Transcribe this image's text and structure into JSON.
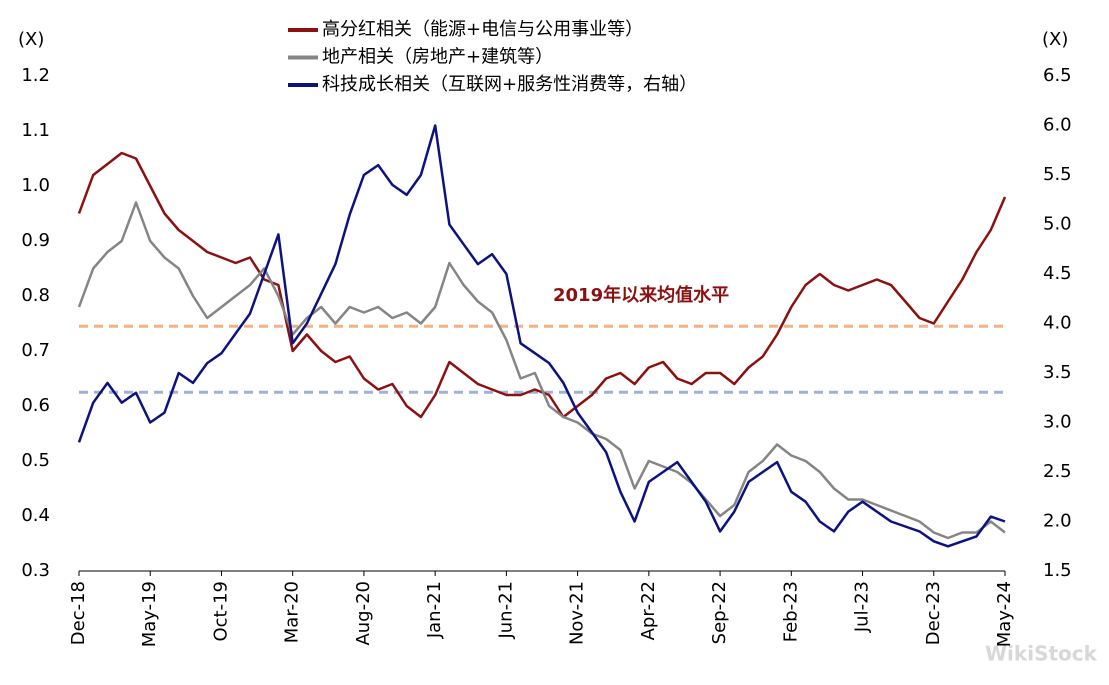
{
  "chart_data": {
    "type": "line",
    "y_label": "(X)",
    "y2_label": "(X)",
    "annotation": "2019年以来均值水平",
    "watermark": "WikiStock",
    "categories": [
      "Dec-18",
      null,
      null,
      null,
      null,
      "May-19",
      null,
      null,
      null,
      null,
      "Oct-19",
      null,
      null,
      null,
      null,
      "Mar-20",
      null,
      null,
      null,
      null,
      "Aug-20",
      null,
      null,
      null,
      null,
      "Jan-21",
      null,
      null,
      null,
      null,
      "Jun-21",
      null,
      null,
      null,
      null,
      "Nov-21",
      null,
      null,
      null,
      null,
      "Apr-22",
      null,
      null,
      null,
      null,
      "Sep-22",
      null,
      null,
      null,
      null,
      "Feb-23",
      null,
      null,
      null,
      null,
      "Jul-23",
      null,
      null,
      null,
      null,
      "Dec-23",
      null,
      null,
      null,
      null,
      "May-24"
    ],
    "ylim": [
      0.3,
      1.2
    ],
    "yticks": [
      0.3,
      0.4,
      0.5,
      0.6,
      0.7,
      0.8,
      0.9,
      {
        "value": 1,
        "label": "1.0"
      },
      1.1,
      1.2
    ],
    "y2lim": [
      1.5,
      6.5
    ],
    "y2ticks": [
      1.5,
      {
        "value": 2,
        "label": "2.0"
      },
      2.5,
      {
        "value": 3,
        "label": "3.0"
      },
      3.5,
      {
        "value": 4,
        "label": "4.0"
      },
      4.5,
      {
        "value": 5,
        "label": "5.0"
      },
      5.5,
      {
        "value": 6,
        "label": "6.0"
      },
      6.5
    ],
    "reference_lines": [
      {
        "value": 0.745,
        "color": "#f4b183"
      },
      {
        "value": 0.625,
        "color": "#9fb2d6"
      }
    ],
    "series": [
      {
        "name": "高分红相关（能源+电信与公用事业等）",
        "color": "#8c1010",
        "values": [
          0.95,
          1.02,
          1.04,
          1.06,
          1.05,
          1.0,
          0.95,
          0.92,
          0.9,
          0.88,
          0.87,
          0.86,
          0.87,
          0.83,
          0.82,
          0.7,
          0.73,
          0.7,
          0.68,
          0.69,
          0.65,
          0.63,
          0.64,
          0.6,
          0.58,
          0.62,
          0.68,
          0.66,
          0.64,
          0.63,
          0.62,
          0.62,
          0.63,
          0.62,
          0.58,
          0.6,
          0.62,
          0.65,
          0.66,
          0.64,
          0.67,
          0.68,
          0.65,
          0.64,
          0.66,
          0.66,
          0.64,
          0.67,
          0.69,
          0.73,
          0.78,
          0.82,
          0.84,
          0.82,
          0.81,
          0.82,
          0.83,
          0.82,
          0.79,
          0.76,
          0.75,
          0.79,
          0.83,
          0.88,
          0.92,
          0.98
        ]
      },
      {
        "name": "地产相关（房地产+建筑等）",
        "color": "#858585",
        "values": [
          0.78,
          0.85,
          0.88,
          0.9,
          0.97,
          0.9,
          0.87,
          0.85,
          0.8,
          0.76,
          0.78,
          0.8,
          0.82,
          0.85,
          0.8,
          0.73,
          0.76,
          0.78,
          0.75,
          0.78,
          0.77,
          0.78,
          0.76,
          0.77,
          0.75,
          0.78,
          0.86,
          0.82,
          0.79,
          0.77,
          0.72,
          0.65,
          0.66,
          0.6,
          0.58,
          0.57,
          0.55,
          0.54,
          0.52,
          0.45,
          0.5,
          0.49,
          0.48,
          0.46,
          0.43,
          0.4,
          0.42,
          0.48,
          0.5,
          0.53,
          0.51,
          0.5,
          0.48,
          0.45,
          0.43,
          0.43,
          0.42,
          0.41,
          0.4,
          0.39,
          0.37,
          0.36,
          0.37,
          0.37,
          0.39,
          0.37
        ]
      },
      {
        "name": "科技成长相关（互联网+服务性消费等，右轴）",
        "color": "#0c1280",
        "axis": "y2",
        "values": [
          2.8,
          3.2,
          3.4,
          3.2,
          3.3,
          3.0,
          3.1,
          3.5,
          3.4,
          3.6,
          3.7,
          3.9,
          4.1,
          4.5,
          4.9,
          3.8,
          4.0,
          4.3,
          4.6,
          5.1,
          5.5,
          5.6,
          5.4,
          5.3,
          5.5,
          6.0,
          5.0,
          4.8,
          4.6,
          4.7,
          4.5,
          3.8,
          3.7,
          3.6,
          3.4,
          3.1,
          2.9,
          2.7,
          2.3,
          2.0,
          2.4,
          2.5,
          2.6,
          2.4,
          2.2,
          1.9,
          2.1,
          2.4,
          2.5,
          2.6,
          2.3,
          2.2,
          2.0,
          1.9,
          2.1,
          2.2,
          2.1,
          2.0,
          1.95,
          1.9,
          1.8,
          1.75,
          1.8,
          1.85,
          2.05,
          2.0
        ]
      }
    ]
  }
}
